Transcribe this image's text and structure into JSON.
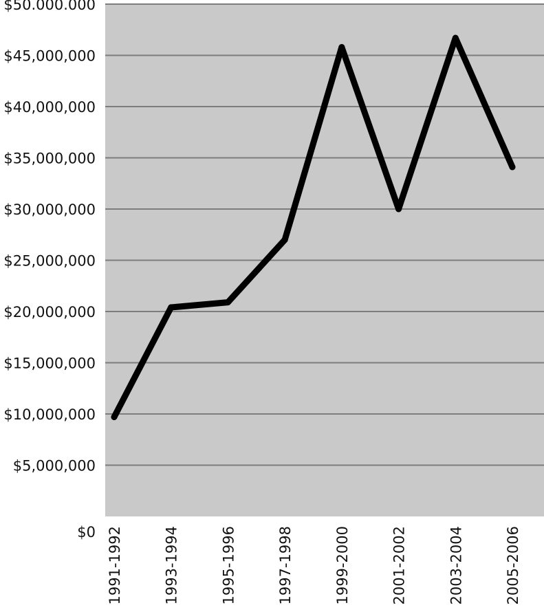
{
  "chart_data": {
    "type": "line",
    "title": "",
    "xlabel": "",
    "ylabel": "",
    "categories": [
      "1991-1992",
      "1993-1994",
      "1995-1996",
      "1997-1998",
      "1999-2000",
      "2001-2002",
      "2003-2004",
      "2005-2006"
    ],
    "series": [
      {
        "values": [
          9700000,
          20400000,
          20900000,
          27000000,
          45800000,
          30000000,
          46700000,
          34100000
        ]
      }
    ],
    "ylim": [
      0,
      50000000
    ],
    "y_ticks": [
      0,
      5000000,
      10000000,
      15000000,
      20000000,
      25000000,
      30000000,
      35000000,
      40000000,
      45000000,
      50000000
    ],
    "y_tick_labels": [
      "$0",
      "$5,000,000",
      "$10,000,000",
      "$15,000,000",
      "$20,000,000",
      "$25,000,000",
      "$30,000,000",
      "$35,000,000",
      "$40,000,000",
      "$45,000,000",
      "$50.000.000"
    ],
    "grid": true,
    "legend": "none",
    "colors": {
      "plot_background": "#c9c9c9",
      "line": "#000000",
      "grid": "#7d7d7d"
    }
  }
}
